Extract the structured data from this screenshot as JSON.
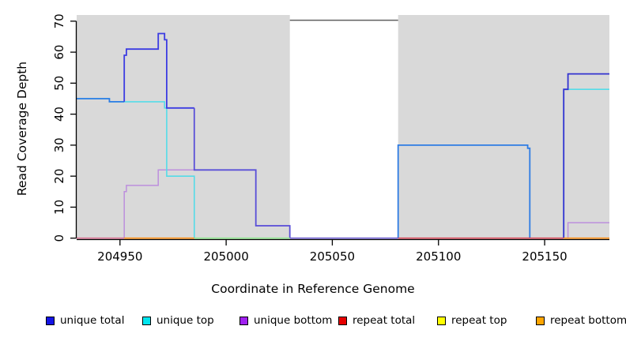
{
  "chart_data": {
    "type": "line",
    "subtype": "step-coverage-plot",
    "title": "",
    "xlabel": "Coordinate in Reference Genome",
    "ylabel": "Read Coverage Depth",
    "xlim": [
      204929.6,
      205180.5
    ],
    "ylim": [
      0,
      72
    ],
    "x_ticks": [
      204950,
      205000,
      205050,
      205100,
      205150
    ],
    "x_tick_labels": [
      "204950",
      "205000",
      "205050",
      "205100",
      "205150"
    ],
    "y_ticks": [
      0,
      10,
      20,
      30,
      40,
      50,
      60,
      70
    ],
    "y_tick_labels": [
      "0",
      "10",
      "20",
      "30",
      "40",
      "50",
      "60",
      "70"
    ],
    "grid": false,
    "legend_position": "bottom",
    "plot_bg": "#d9d9d9",
    "page_bg": "#ffffff",
    "axis_color": "#000000",
    "highlight_band": {
      "x0": 205030,
      "x1": 205081,
      "color": "#ffffff",
      "topline_value": 70.3,
      "topline_color": "#5f5f5f"
    },
    "series": [
      {
        "name": "unique bottom",
        "legend_color": "#a020f0",
        "width": 1.5,
        "segments": [
          {
            "color": "#bd8fdd",
            "points": [
              [
                204952,
                0
              ],
              [
                204952,
                15
              ],
              [
                204953,
                15
              ],
              [
                204953,
                17
              ],
              [
                204968,
                17
              ],
              [
                204968,
                22
              ],
              [
                205014,
                22
              ],
              [
                205014,
                4
              ],
              [
                205030,
                4
              ],
              [
                205030,
                0
              ]
            ]
          },
          {
            "color": "#bd8fdd",
            "points": [
              [
                205161,
                0
              ],
              [
                205161,
                5
              ],
              [
                205180.5,
                5
              ]
            ]
          }
        ]
      },
      {
        "name": "unique top",
        "legend_color": "#00e5ee",
        "width": 1.6,
        "segments": [
          {
            "color": "#55dce8",
            "points": [
              [
                204929.6,
                45
              ],
              [
                204945,
                45
              ],
              [
                204945,
                44
              ],
              [
                204971,
                44
              ],
              [
                204971,
                42
              ],
              [
                204972,
                42
              ],
              [
                204972,
                20
              ],
              [
                204985,
                20
              ],
              [
                204985,
                0
              ]
            ]
          },
          {
            "color": "#55dce8",
            "points": [
              [
                205159,
                0
              ],
              [
                205159,
                48
              ],
              [
                205180.5,
                48
              ]
            ]
          }
        ]
      },
      {
        "name": "unique total",
        "legend_color": "#1414e6",
        "width": 1.8,
        "segments": [
          {
            "color": "#2e7ce4",
            "points": [
              [
                204929.6,
                45
              ],
              [
                204945,
                45
              ],
              [
                204945,
                44
              ],
              [
                204952,
                44
              ]
            ]
          },
          {
            "color": "#3c3ce2",
            "points": [
              [
                204952,
                44
              ],
              [
                204952,
                59
              ],
              [
                204953,
                59
              ],
              [
                204953,
                61
              ],
              [
                204968,
                61
              ],
              [
                204968,
                66
              ],
              [
                204971,
                66
              ],
              [
                204971,
                64
              ],
              [
                204972,
                64
              ],
              [
                204972,
                42
              ],
              [
                204985,
                42
              ]
            ]
          },
          {
            "color": "#5a50d8",
            "points": [
              [
                204985,
                42
              ],
              [
                204985,
                22
              ],
              [
                205014,
                22
              ],
              [
                205014,
                4
              ],
              [
                205030,
                4
              ],
              [
                205030,
                0
              ]
            ]
          },
          {
            "color": "#2e7ce4",
            "points": [
              [
                205081,
                0
              ],
              [
                205081,
                30
              ],
              [
                205142,
                30
              ],
              [
                205142,
                29
              ],
              [
                205143,
                29
              ],
              [
                205143,
                0
              ]
            ]
          },
          {
            "color": "#3333d0",
            "points": [
              [
                205159,
                0
              ],
              [
                205159,
                48
              ],
              [
                205161,
                48
              ],
              [
                205161,
                53
              ],
              [
                205180.5,
                53
              ]
            ]
          }
        ]
      },
      {
        "name": "repeat total",
        "legend_color": "#e60000",
        "width": 1.6,
        "segments": []
      },
      {
        "name": "repeat top",
        "legend_color": "#ffff00",
        "width": 1.6,
        "segments": []
      },
      {
        "name": "repeat bottom",
        "legend_color": "#ffa500",
        "width": 1.6,
        "segments": []
      }
    ],
    "baseline_value": 0,
    "baseline_segments": [
      {
        "color": "#db7093",
        "x0": 204929.6,
        "x1": 204952
      },
      {
        "color": "#ff9015",
        "x0": 204952,
        "x1": 204985
      },
      {
        "color": "#90e890",
        "x0": 204985,
        "x1": 205030
      },
      {
        "color": "#6a5acd",
        "x0": 205030,
        "x1": 205081
      },
      {
        "color": "#d94a5a",
        "x0": 205081,
        "x1": 205159
      },
      {
        "color": "#ff9015",
        "x0": 205159,
        "x1": 205180.5
      }
    ]
  },
  "legend": {
    "items": [
      {
        "label": "unique total",
        "color": "#1414e6"
      },
      {
        "label": "unique top",
        "color": "#00e5ee"
      },
      {
        "label": "unique bottom",
        "color": "#a020f0"
      },
      {
        "label": "repeat total",
        "color": "#e60000"
      },
      {
        "label": "repeat top",
        "color": "#ffff00"
      },
      {
        "label": "repeat bottom",
        "color": "#ffa500"
      }
    ]
  }
}
